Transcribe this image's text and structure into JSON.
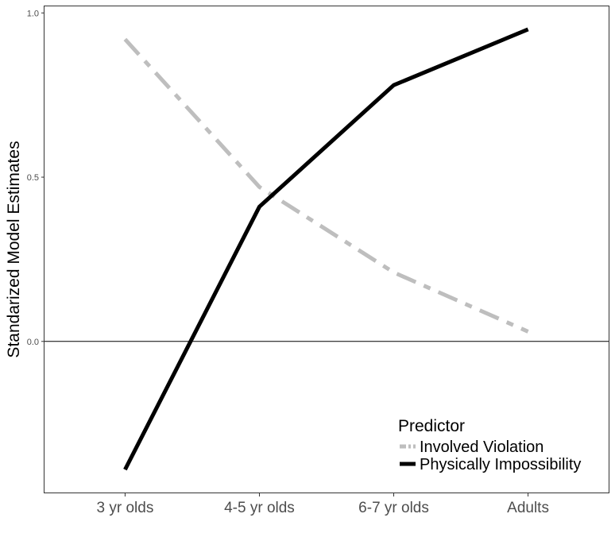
{
  "chart_data": {
    "type": "line",
    "title": "",
    "xlabel": "",
    "ylabel": "Standarized Model Estimates",
    "categories": [
      "3 yr olds",
      "4-5 yr olds",
      "6-7 yr olds",
      "Adults"
    ],
    "ylim": [
      -0.46,
      1.02
    ],
    "yticks": [
      0.0,
      0.5,
      1.0
    ],
    "ytick_labels": [
      "0.0",
      "0.5",
      "1.0"
    ],
    "reference_line": 0.0,
    "grid": false,
    "legend": {
      "title": "Predictor",
      "placement": "bottom-right"
    },
    "series": [
      {
        "name": "Involved Violation",
        "values": [
          0.92,
          0.47,
          0.21,
          0.03
        ],
        "color": "#bebebe",
        "style": "dash-dot"
      },
      {
        "name": "Physically Impossibility",
        "values": [
          -0.39,
          0.41,
          0.78,
          0.95
        ],
        "color": "#000000",
        "style": "solid"
      }
    ]
  }
}
